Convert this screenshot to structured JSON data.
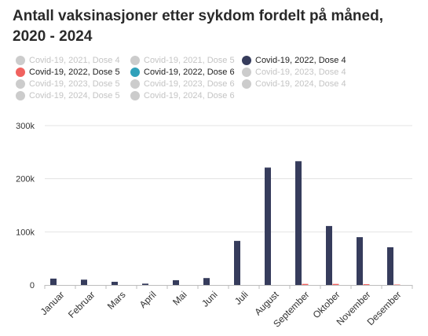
{
  "title": "Antall vaksinasjoner etter sykdom fordelt på måned, 2020 - 2024",
  "colors": {
    "dose4_2022": "#363c5c",
    "dose5_2022": "#f0625f",
    "dose6_2022": "#30a1ba",
    "inactive": "#cccccc"
  },
  "legend": [
    {
      "label": "Covid-19, 2021, Dose 4",
      "active": false
    },
    {
      "label": "Covid-19, 2021, Dose 5",
      "active": false
    },
    {
      "label": "Covid-19, 2022, Dose 4",
      "active": true,
      "color": "#363c5c"
    },
    {
      "label": "Covid-19, 2022, Dose 5",
      "active": true,
      "color": "#f0625f"
    },
    {
      "label": "Covid-19, 2022, Dose 6",
      "active": true,
      "color": "#30a1ba"
    },
    {
      "label": "Covid-19, 2023, Dose 4",
      "active": false
    },
    {
      "label": "Covid-19, 2023, Dose 5",
      "active": false
    },
    {
      "label": "Covid-19, 2023, Dose 6",
      "active": false
    },
    {
      "label": "Covid-19, 2024, Dose 4",
      "active": false
    },
    {
      "label": "Covid-19, 2024, Dose 5",
      "active": false
    },
    {
      "label": "Covid-19, 2024, Dose 6",
      "active": false
    }
  ],
  "chart_data": {
    "type": "bar",
    "categories": [
      "Januar",
      "Februar",
      "Mars",
      "April",
      "Mai",
      "Juni",
      "Juli",
      "August",
      "September",
      "Oktober",
      "November",
      "Desember"
    ],
    "series": [
      {
        "name": "Covid-19, 2022, Dose 4",
        "color": "#363c5c",
        "values": [
          12000,
          10000,
          6000,
          2500,
          9000,
          13000,
          83000,
          221000,
          233000,
          111000,
          90000,
          71000
        ]
      },
      {
        "name": "Covid-19, 2022, Dose 5",
        "color": "#f0625f",
        "values": [
          0,
          0,
          0,
          0,
          0,
          0,
          0,
          0,
          2000,
          2000,
          1500,
          800
        ]
      },
      {
        "name": "Covid-19, 2022, Dose 6",
        "color": "#30a1ba",
        "values": [
          0,
          0,
          0,
          0,
          0,
          0,
          0,
          0,
          0,
          0,
          0,
          0
        ]
      }
    ],
    "ylim": [
      0,
      300000
    ],
    "yticks": [
      0,
      100000,
      200000,
      300000
    ],
    "ytick_labels": [
      "0",
      "100k",
      "200k",
      "300k"
    ],
    "grid": true,
    "legend_position": "top"
  }
}
